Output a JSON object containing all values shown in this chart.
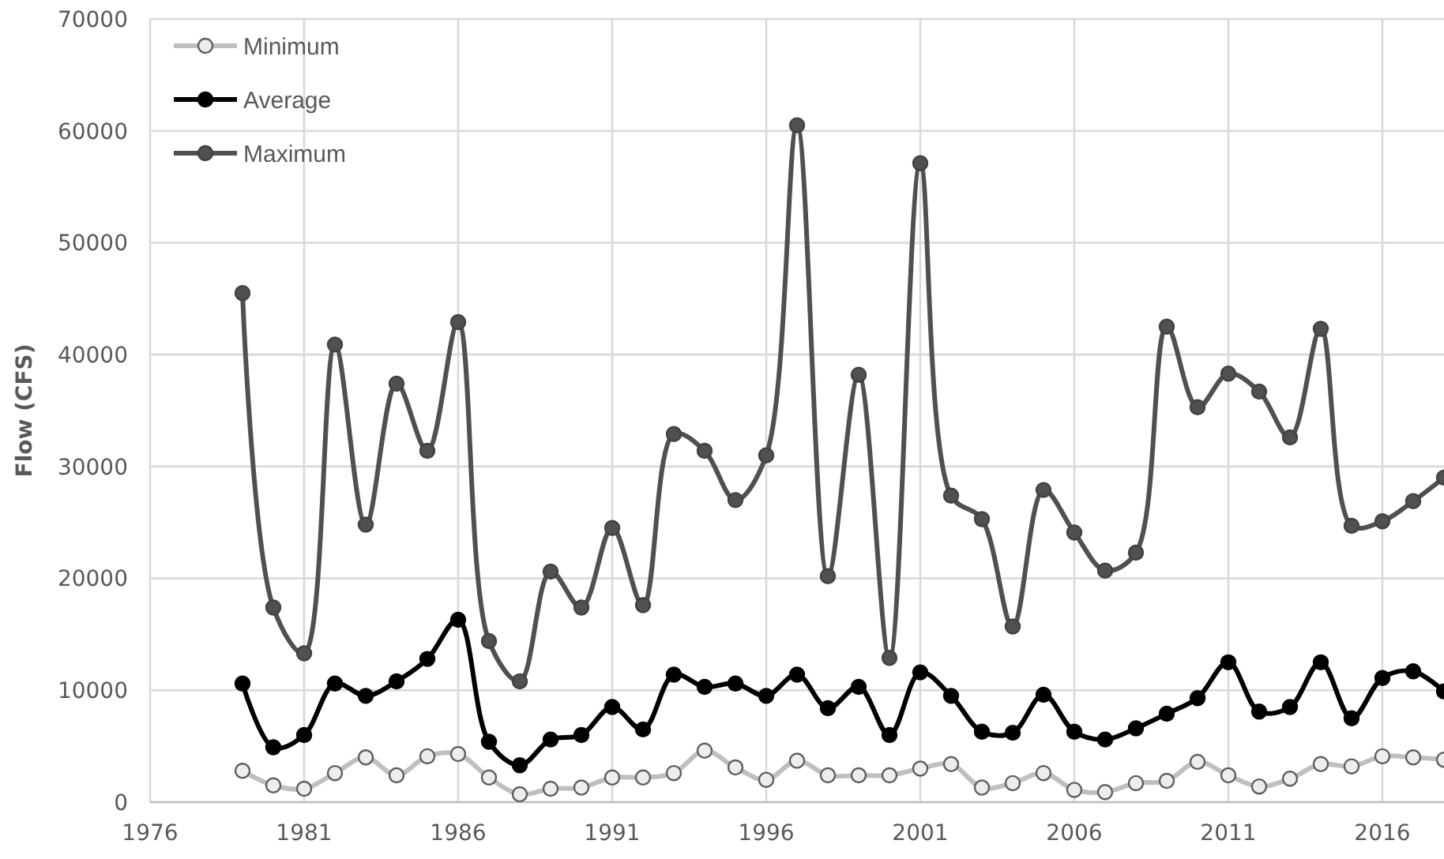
{
  "chart_data": {
    "type": "line",
    "ylabel": "Flow (CFS)",
    "x": [
      1979,
      1980,
      1981,
      1982,
      1983,
      1984,
      1985,
      1986,
      1987,
      1988,
      1989,
      1990,
      1991,
      1992,
      1993,
      1994,
      1995,
      1996,
      1997,
      1998,
      1999,
      2000,
      2001,
      2002,
      2003,
      2004,
      2005,
      2006,
      2007,
      2008,
      2009,
      2010,
      2011,
      2012,
      2013,
      2014,
      2015,
      2016,
      2017,
      2018
    ],
    "series": [
      {
        "name": "Minimum",
        "color": "#bfbfbf",
        "values": [
          2800,
          1500,
          1200,
          2600,
          4000,
          2400,
          4100,
          4300,
          2200,
          700,
          1200,
          1300,
          2200,
          2200,
          2600,
          4600,
          3100,
          2000,
          3700,
          2400,
          2400,
          2400,
          3000,
          3400,
          1300,
          1700,
          2600,
          1100,
          900,
          1700,
          1900,
          3600,
          2400,
          1400,
          2100,
          3400,
          3200,
          4100,
          4000,
          3800
        ]
      },
      {
        "name": "Average",
        "color": "#000000",
        "values": [
          10600,
          4900,
          6000,
          10600,
          9500,
          10800,
          12800,
          16300,
          5400,
          3300,
          5600,
          6000,
          8500,
          6500,
          11400,
          10300,
          10600,
          9500,
          11400,
          8400,
          10300,
          6000,
          11600,
          9500,
          6300,
          6200,
          9600,
          6300,
          5600,
          6600,
          7900,
          9300,
          12500,
          8100,
          8500,
          12500,
          7500,
          11100,
          11700,
          9900
        ]
      },
      {
        "name": "Maximum",
        "color": "#505050",
        "values": [
          45500,
          17400,
          13300,
          40900,
          24800,
          37400,
          31400,
          42900,
          14400,
          10800,
          20600,
          17400,
          24500,
          17600,
          32900,
          31400,
          27000,
          31000,
          60500,
          20200,
          38200,
          12900,
          57100,
          27400,
          25300,
          15700,
          27900,
          24100,
          20700,
          22300,
          42500,
          35300,
          38300,
          36700,
          32600,
          42300,
          24700,
          25100,
          26900,
          29000
        ]
      }
    ],
    "xlim": [
      1976,
      2018
    ],
    "xticks": [
      1976,
      1981,
      1986,
      1991,
      1996,
      2001,
      2006,
      2011,
      2016
    ],
    "ylim": [
      0,
      70000
    ],
    "yticks": [
      0,
      10000,
      20000,
      30000,
      40000,
      50000,
      60000,
      70000
    ],
    "grid": true,
    "legend": "top left",
    "marker": "circle"
  }
}
